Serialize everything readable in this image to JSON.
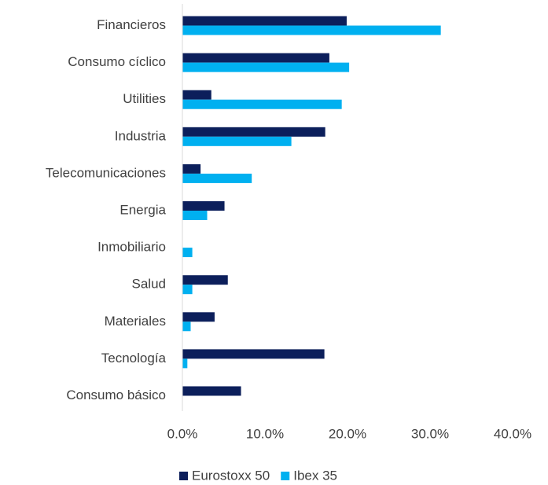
{
  "chart_data": {
    "type": "hbar",
    "categories": [
      "Financieros",
      "Consumo cíclico",
      "Utilities",
      "Industria",
      "Telecomunicaciones",
      "Energia",
      "Inmobiliario",
      "Salud",
      "Materiales",
      "Tecnología",
      "Consumo básico"
    ],
    "series": [
      {
        "name": "Eurostoxx 50",
        "color": "#0c1f5b",
        "values": [
          19.9,
          17.8,
          3.5,
          17.3,
          2.2,
          5.1,
          0,
          5.5,
          3.9,
          17.2,
          7.1
        ]
      },
      {
        "name": "Ibex 35",
        "color": "#00b0f0",
        "values": [
          31.3,
          20.2,
          19.3,
          13.2,
          8.4,
          3.0,
          1.2,
          1.2,
          1.0,
          0.6,
          0
        ]
      }
    ],
    "xlim": [
      0,
      40
    ],
    "xticks": [
      {
        "value": 0,
        "label": "0.0%"
      },
      {
        "value": 10,
        "label": "10.0%"
      },
      {
        "value": 20,
        "label": "20.0%"
      },
      {
        "value": 30,
        "label": "30.0%"
      },
      {
        "value": 40,
        "label": "40.0%"
      }
    ],
    "legend": "bottom"
  }
}
